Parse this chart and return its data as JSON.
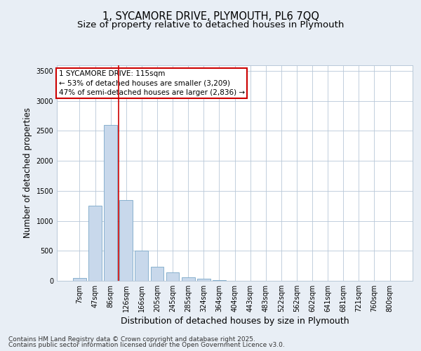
{
  "title": "1, SYCAMORE DRIVE, PLYMOUTH, PL6 7QQ",
  "subtitle": "Size of property relative to detached houses in Plymouth",
  "xlabel": "Distribution of detached houses by size in Plymouth",
  "ylabel": "Number of detached properties",
  "categories": [
    "7sqm",
    "47sqm",
    "86sqm",
    "126sqm",
    "166sqm",
    "205sqm",
    "245sqm",
    "285sqm",
    "324sqm",
    "364sqm",
    "404sqm",
    "443sqm",
    "483sqm",
    "522sqm",
    "562sqm",
    "602sqm",
    "641sqm",
    "681sqm",
    "721sqm",
    "760sqm",
    "800sqm"
  ],
  "values": [
    50,
    1250,
    2600,
    1350,
    500,
    230,
    140,
    55,
    40,
    10,
    5,
    3,
    2,
    0,
    0,
    0,
    0,
    0,
    0,
    0,
    0
  ],
  "bar_color": "#c8d8eb",
  "bar_edge_color": "#7aa8c8",
  "vline_color": "#cc0000",
  "vline_x_index": 2.5,
  "annotation_line1": "1 SYCAMORE DRIVE: 115sqm",
  "annotation_line2": "← 53% of detached houses are smaller (3,209)",
  "annotation_line3": "47% of semi-detached houses are larger (2,836) →",
  "annotation_box_color": "#ffffff",
  "annotation_box_edge": "#cc0000",
  "ylim": [
    0,
    3600
  ],
  "yticks": [
    0,
    500,
    1000,
    1500,
    2000,
    2500,
    3000,
    3500
  ],
  "bg_color": "#e8eef5",
  "plot_bg_color": "#ffffff",
  "grid_color": "#b8c8d8",
  "footer_line1": "Contains HM Land Registry data © Crown copyright and database right 2025.",
  "footer_line2": "Contains public sector information licensed under the Open Government Licence v3.0.",
  "title_fontsize": 10.5,
  "subtitle_fontsize": 9.5,
  "ylabel_fontsize": 8.5,
  "xlabel_fontsize": 9,
  "tick_fontsize": 7,
  "annotation_fontsize": 7.5,
  "footer_fontsize": 6.5
}
